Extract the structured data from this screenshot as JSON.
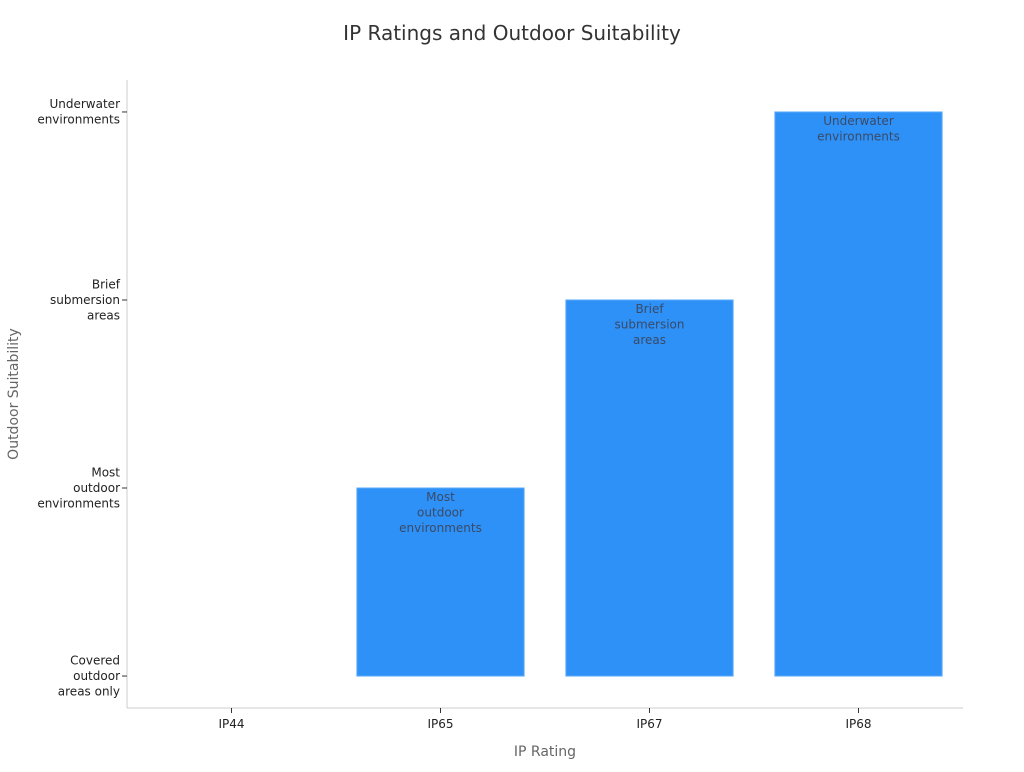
{
  "chart_data": {
    "type": "bar",
    "title": "IP Ratings and Outdoor Suitability",
    "xlabel": "IP Rating",
    "ylabel": "Outdoor Suitability",
    "categories": [
      "IP44",
      "IP65",
      "IP67",
      "IP68"
    ],
    "y_levels": [
      [
        "Covered",
        "outdoor",
        "areas only"
      ],
      [
        "Most",
        "outdoor",
        "environments"
      ],
      [
        "Brief",
        "submersion",
        "areas"
      ],
      [
        "Underwater",
        "environments"
      ]
    ],
    "values": [
      0,
      1,
      2,
      3
    ],
    "ylim": [
      -0.17,
      3.17
    ],
    "bar_color": "#2e91f8",
    "grid": false,
    "data_labels": true
  }
}
